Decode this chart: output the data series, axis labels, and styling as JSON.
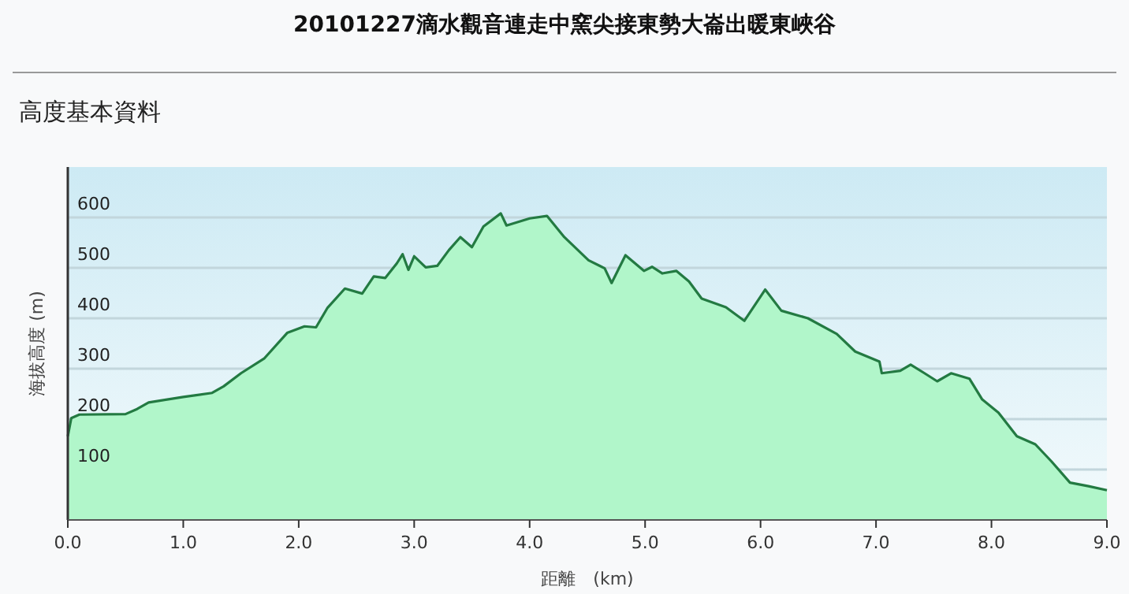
{
  "chart_data": {
    "type": "area",
    "title": "20101227滴水觀音連走中窯尖接東勢大崙出暖東峽谷",
    "subtitle": "高度基本資料",
    "xlabel": "距離　(km)",
    "ylabel": "海拔高度 (m)",
    "series": [
      {
        "color": "#237a42",
        "x": [
          0,
          0.03,
          0.1,
          0.5,
          0.6,
          0.7,
          1.0,
          1.25,
          1.35,
          1.5,
          1.7,
          1.9,
          2.05,
          2.15,
          2.25,
          2.4,
          2.55,
          2.65,
          2.75,
          2.85,
          2.9,
          2.95,
          3.0,
          3.1,
          3.2,
          3.3,
          3.4,
          3.5,
          3.6,
          3.75,
          3.8,
          4.0,
          4.15,
          4.3,
          4.51,
          4.65,
          4.71,
          4.83,
          4.99,
          5.06,
          5.15,
          5.27,
          5.38,
          5.49,
          5.7,
          5.86,
          6.04,
          6.18,
          6.41,
          6.66,
          6.82,
          7.03,
          7.05,
          7.21,
          7.3,
          7.42,
          7.53,
          7.65,
          7.81,
          7.92,
          8.06,
          8.22,
          8.38,
          8.52,
          8.68,
          8.84,
          9.0
        ],
        "values": [
          166,
          202,
          209,
          210,
          220,
          233,
          244,
          252,
          265,
          291,
          320,
          371,
          384,
          382,
          421,
          459,
          449,
          483,
          480,
          509,
          527,
          496,
          523,
          501,
          504,
          535,
          561,
          541,
          582,
          608,
          584,
          598,
          603,
          561,
          515,
          499,
          470,
          525,
          494,
          502,
          489,
          494,
          473,
          439,
          422,
          395,
          457,
          415,
          400,
          369,
          334,
          314,
          291,
          296,
          308,
          291,
          275,
          291,
          280,
          239,
          213,
          166,
          150,
          116,
          74,
          67,
          59
        ]
      }
    ],
    "xlim": [
      0,
      9
    ],
    "xticks": [
      {
        "value": 0,
        "label": "0.0"
      },
      {
        "value": 1,
        "label": "1.0"
      },
      {
        "value": 2,
        "label": "2.0"
      },
      {
        "value": 3,
        "label": "3.0"
      },
      {
        "value": 4,
        "label": "4.0"
      },
      {
        "value": 5,
        "label": "5.0"
      },
      {
        "value": 6,
        "label": "6.0"
      },
      {
        "value": 7,
        "label": "7.0"
      },
      {
        "value": 8,
        "label": "8.0"
      },
      {
        "value": 9,
        "label": "9.0"
      }
    ],
    "ylim": [
      0,
      700
    ],
    "yticks": [
      100,
      200,
      300,
      400,
      500,
      600
    ],
    "grid": "y"
  }
}
